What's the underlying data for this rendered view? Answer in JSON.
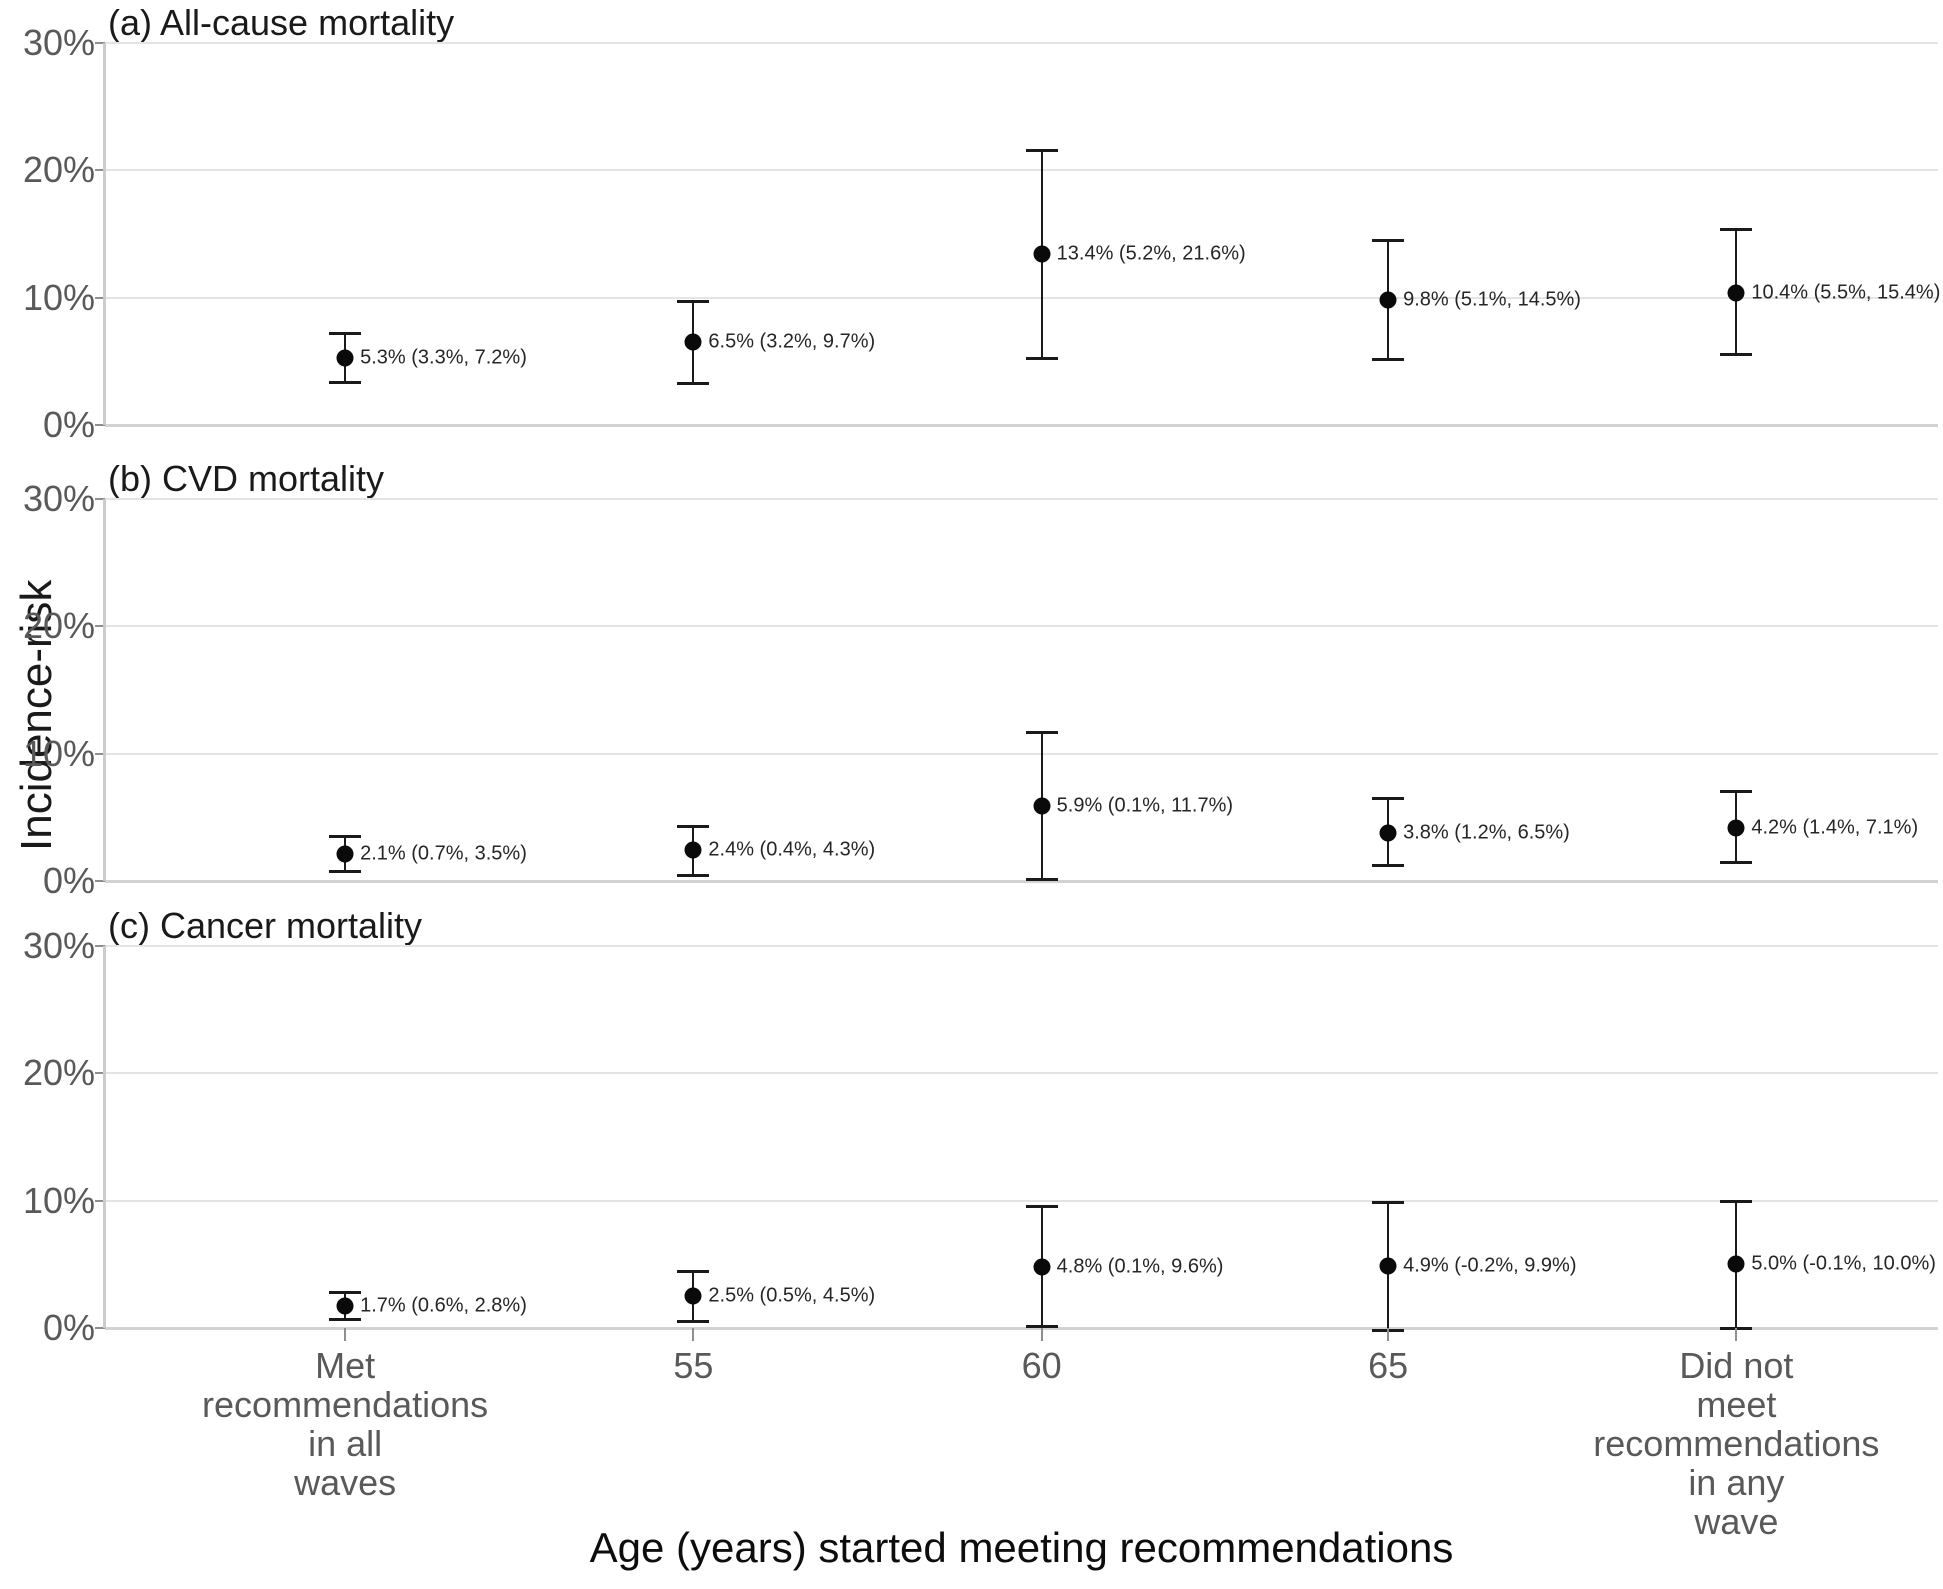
{
  "figure": {
    "y_axis_title": "Incidence-risk",
    "x_axis_title": "Age (years) started meeting recommendations"
  },
  "chart_data": {
    "type": "scatter",
    "variant": "point estimates with confidence-interval error bars, three stacked panels",
    "title": "",
    "xlabel": "Age (years) started meeting recommendations",
    "ylabel": "Incidence-risk",
    "ylim": [
      0,
      30
    ],
    "grid": "horizontal gridlines only",
    "legend": "none",
    "y_ticks": [
      {
        "value": 0,
        "label": "0%"
      },
      {
        "value": 10,
        "label": "10%"
      },
      {
        "value": 20,
        "label": "20%"
      },
      {
        "value": 30,
        "label": "30%"
      }
    ],
    "x_categories": [
      "Met recommendations in all waves",
      "55",
      "60",
      "65",
      "Did not meet recommendations in any wave"
    ],
    "x_tick_lines": [
      [
        "Met",
        "recommendations",
        "in all",
        "waves"
      ],
      [
        "55"
      ],
      [
        "60"
      ],
      [
        "65"
      ],
      [
        "Did not",
        "meet",
        "recommendations",
        "in any",
        "wave"
      ]
    ],
    "panels": [
      {
        "title": "(a) All-cause mortality",
        "points": [
          {
            "category": "Met recommendations in all waves",
            "estimate": 5.3,
            "ci_lower": 3.3,
            "ci_upper": 7.2,
            "label": "5.3% (3.3%, 7.2%)"
          },
          {
            "category": "55",
            "estimate": 6.5,
            "ci_lower": 3.2,
            "ci_upper": 9.7,
            "label": "6.5% (3.2%, 9.7%)"
          },
          {
            "category": "60",
            "estimate": 13.4,
            "ci_lower": 5.2,
            "ci_upper": 21.6,
            "label": "13.4% (5.2%, 21.6%)"
          },
          {
            "category": "65",
            "estimate": 9.8,
            "ci_lower": 5.1,
            "ci_upper": 14.5,
            "label": "9.8% (5.1%, 14.5%)"
          },
          {
            "category": "Did not meet recommendations in any wave",
            "estimate": 10.4,
            "ci_lower": 5.5,
            "ci_upper": 15.4,
            "label": "10.4% (5.5%, 15.4%)"
          }
        ]
      },
      {
        "title": "(b) CVD mortality",
        "points": [
          {
            "category": "Met recommendations in all waves",
            "estimate": 2.1,
            "ci_lower": 0.7,
            "ci_upper": 3.5,
            "label": "2.1% (0.7%, 3.5%)"
          },
          {
            "category": "55",
            "estimate": 2.4,
            "ci_lower": 0.4,
            "ci_upper": 4.3,
            "label": "2.4% (0.4%, 4.3%)"
          },
          {
            "category": "60",
            "estimate": 5.9,
            "ci_lower": 0.1,
            "ci_upper": 11.7,
            "label": "5.9% (0.1%, 11.7%)"
          },
          {
            "category": "65",
            "estimate": 3.8,
            "ci_lower": 1.2,
            "ci_upper": 6.5,
            "label": "3.8% (1.2%, 6.5%)"
          },
          {
            "category": "Did not meet recommendations in any wave",
            "estimate": 4.2,
            "ci_lower": 1.4,
            "ci_upper": 7.1,
            "label": "4.2% (1.4%, 7.1%)"
          }
        ]
      },
      {
        "title": "(c) Cancer mortality",
        "points": [
          {
            "category": "Met recommendations in all waves",
            "estimate": 1.7,
            "ci_lower": 0.6,
            "ci_upper": 2.8,
            "label": "1.7% (0.6%, 2.8%)"
          },
          {
            "category": "55",
            "estimate": 2.5,
            "ci_lower": 0.5,
            "ci_upper": 4.5,
            "label": "2.5% (0.5%, 4.5%)"
          },
          {
            "category": "60",
            "estimate": 4.8,
            "ci_lower": 0.1,
            "ci_upper": 9.6,
            "label": "4.8% (0.1%, 9.6%)"
          },
          {
            "category": "65",
            "estimate": 4.9,
            "ci_lower": -0.2,
            "ci_upper": 9.9,
            "label": "4.9% (-0.2%, 9.9%)"
          },
          {
            "category": "Did not meet recommendations in any wave",
            "estimate": 5.0,
            "ci_lower": -0.1,
            "ci_upper": 10.0,
            "label": "5.0% (-0.1%, 10.0%)"
          }
        ]
      }
    ]
  }
}
